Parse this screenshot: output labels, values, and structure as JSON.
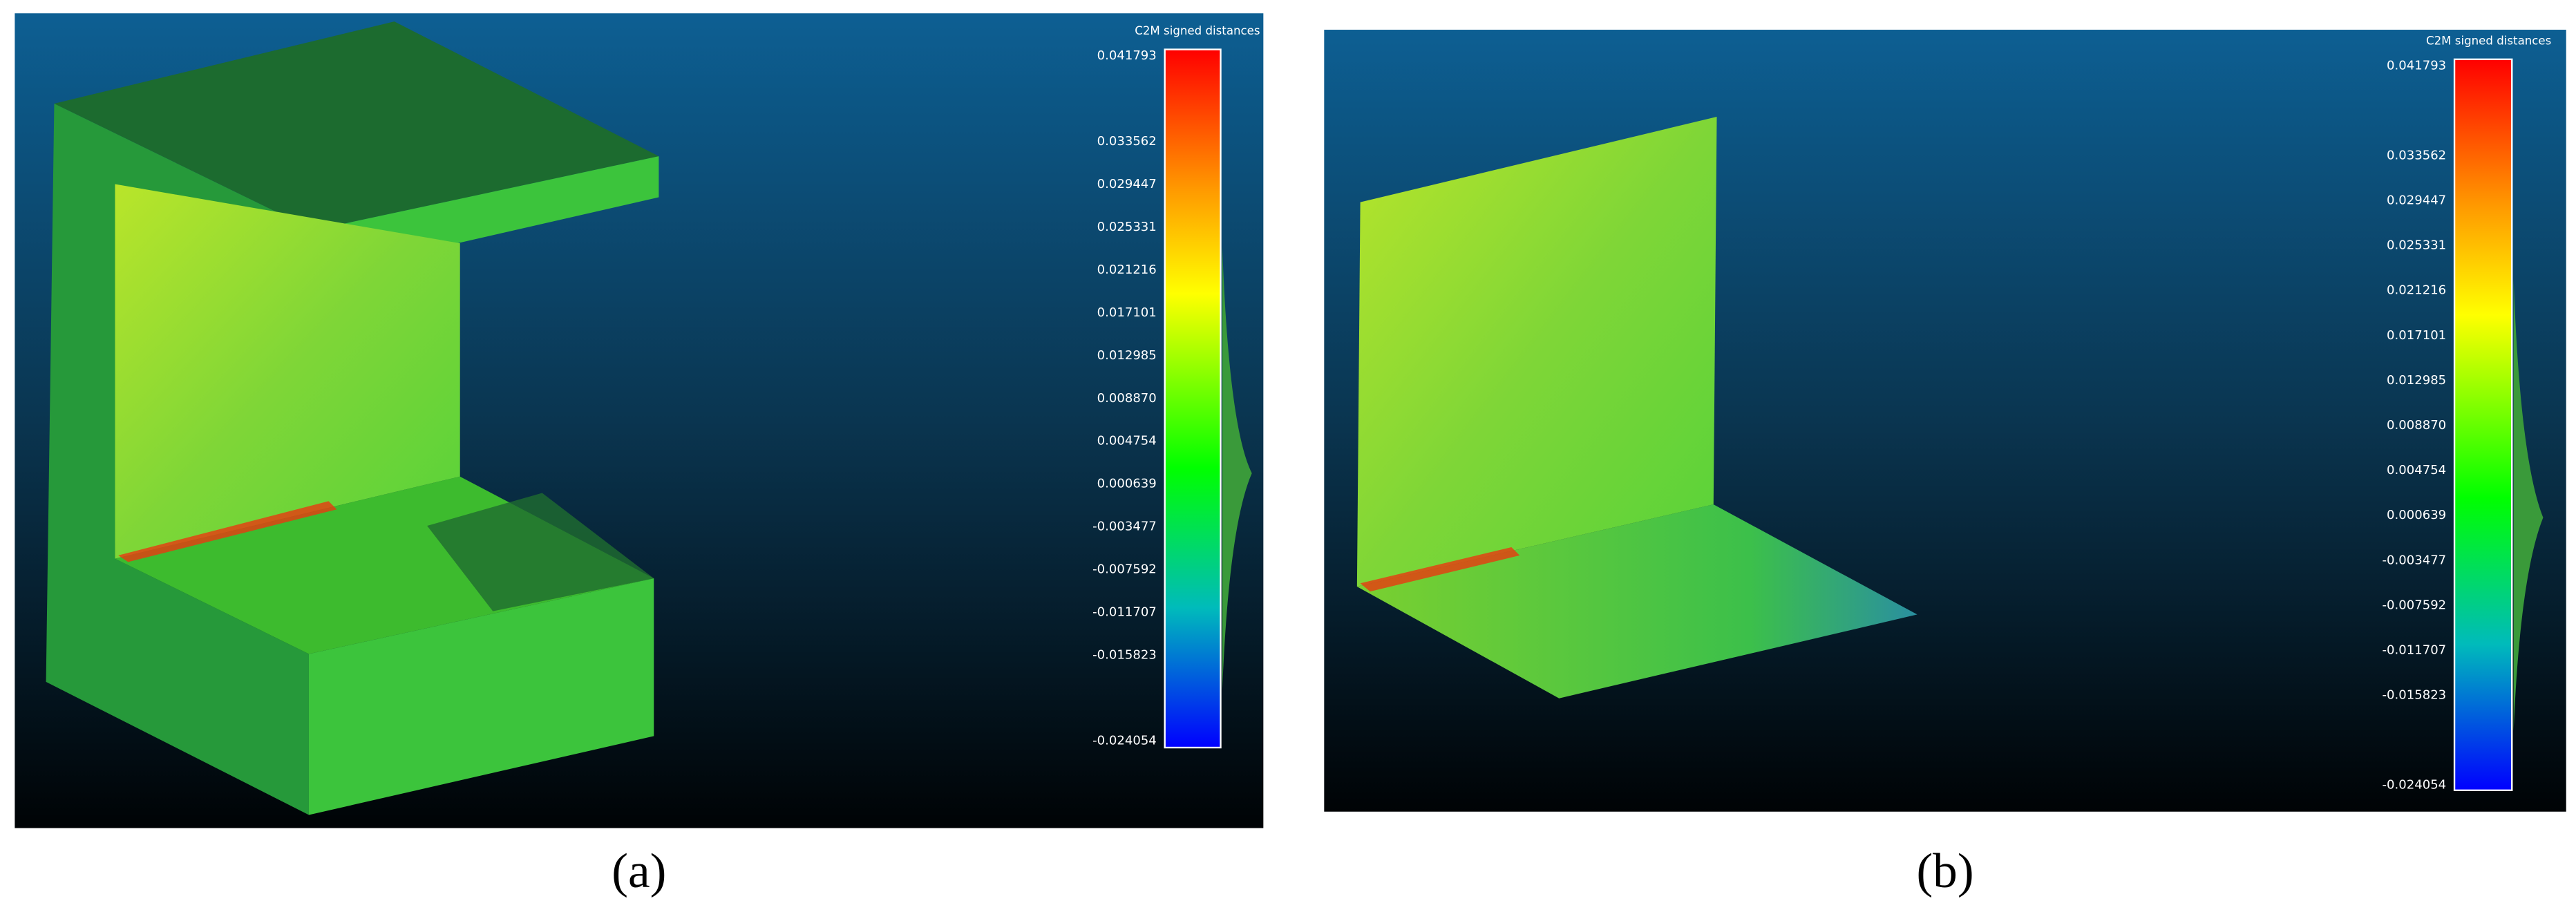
{
  "panels": [
    {
      "label": "(a)",
      "scale": {
        "title": "C2M signed distances",
        "labels": [
          "0.041793",
          "0.033562",
          "0.029447",
          "0.025331",
          "0.021216",
          "0.017101",
          "0.012985",
          "0.008870",
          "0.004754",
          "0.000639",
          "-0.003477",
          "-0.007592",
          "-0.011707",
          "-0.015823",
          "-0.024054"
        ]
      }
    },
    {
      "label": "(b)",
      "scale": {
        "title": "C2M signed distances",
        "labels": [
          "0.041793",
          "0.033562",
          "0.029447",
          "0.025331",
          "0.021216",
          "0.017101",
          "0.012985",
          "0.008870",
          "0.004754",
          "0.000639",
          "-0.003477",
          "-0.007592",
          "-0.011707",
          "-0.015823",
          "-0.024054"
        ]
      }
    }
  ]
}
